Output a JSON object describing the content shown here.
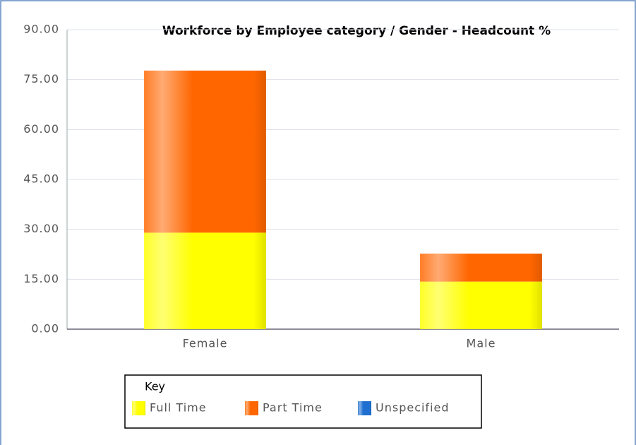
{
  "chart_data": {
    "type": "stacked_bar",
    "title": "Workforce by Employee category / Gender - Headcount %",
    "categories": [
      "Female",
      "Male"
    ],
    "series": [
      {
        "name": "Full Time",
        "color": "#ffff00",
        "values": [
          29.0,
          14.3
        ]
      },
      {
        "name": "Part Time",
        "color": "#ff6600",
        "values": [
          48.7,
          8.4
        ]
      },
      {
        "name": "Unspecified",
        "color": "#1e6fd0",
        "values": [
          0,
          0
        ]
      }
    ],
    "ylim": [
      0,
      90
    ],
    "yticks": [
      {
        "value": 0,
        "label": "0.00"
      },
      {
        "value": 15,
        "label": "15.00"
      },
      {
        "value": 30,
        "label": "30.00"
      },
      {
        "value": 45,
        "label": "45.00"
      },
      {
        "value": 60,
        "label": "60.00"
      },
      {
        "value": 75,
        "label": "75.00"
      },
      {
        "value": 90,
        "label": "90.00"
      }
    ],
    "grid": true,
    "legend_title": "Key",
    "legend": "bottom-left"
  }
}
